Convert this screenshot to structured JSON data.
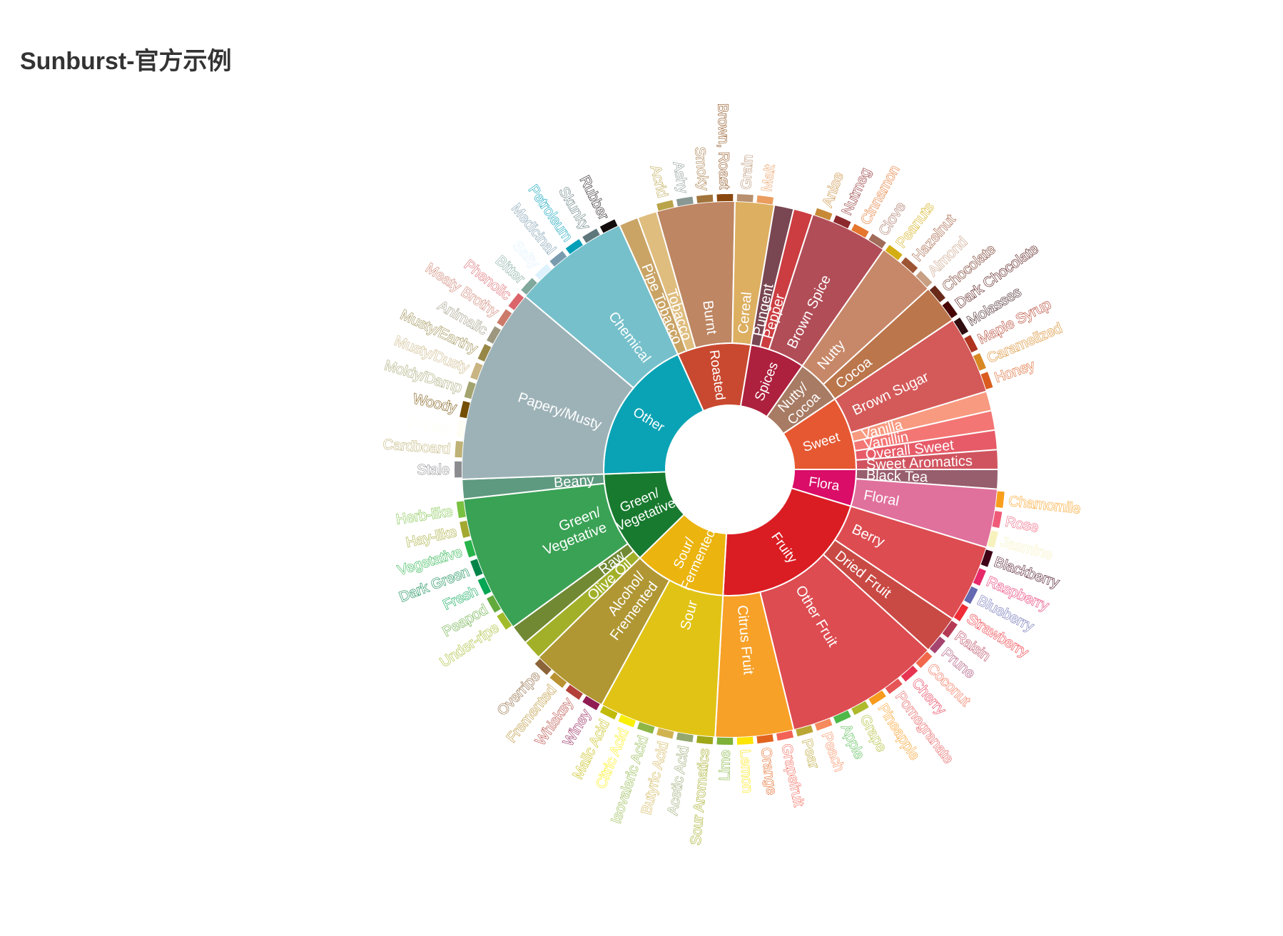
{
  "page": {
    "title": "Sunburst-官方示例"
  },
  "chart_data": {
    "type": "sunburst",
    "title": "Sunburst-官方示例",
    "children": [
      {
        "name": "Flora",
        "color": "#da0d68",
        "children": [
          {
            "name": "Black Tea",
            "value": 1,
            "color": "#975e6d"
          },
          {
            "name": "Floral",
            "color": "#e0719c",
            "children": [
              {
                "name": "Chamomile",
                "value": 1,
                "color": "#f99e1c"
              },
              {
                "name": "Rose",
                "value": 1,
                "color": "#ef5a78"
              },
              {
                "name": "Jasmine",
                "value": 1,
                "color": "#f7f1bd"
              }
            ]
          }
        ]
      },
      {
        "name": "Fruity",
        "color": "#da1d23",
        "children": [
          {
            "name": "Berry",
            "color": "#dd4c51",
            "children": [
              {
                "name": "Blackberry",
                "value": 1,
                "color": "#3e0317"
              },
              {
                "name": "Raspberry",
                "value": 1,
                "color": "#e62969"
              },
              {
                "name": "Blueberry",
                "value": 1,
                "color": "#6569b0"
              },
              {
                "name": "Strawberry",
                "value": 1,
                "color": "#ef2d36"
              }
            ]
          },
          {
            "name": "Dried Fruit",
            "color": "#c94a44",
            "children": [
              {
                "name": "Raisin",
                "value": 1,
                "color": "#b53b54"
              },
              {
                "name": "Prune",
                "value": 1,
                "color": "#a5446f"
              }
            ]
          },
          {
            "name": "Other Fruit",
            "color": "#dd4c51",
            "children": [
              {
                "name": "Coconut",
                "value": 1,
                "color": "#f2684b"
              },
              {
                "name": "Cherry",
                "value": 1,
                "color": "#e73451"
              },
              {
                "name": "Pomegranate",
                "value": 1,
                "color": "#e65656"
              },
              {
                "name": "Pineapple",
                "value": 1,
                "color": "#f89a1c"
              },
              {
                "name": "Grape",
                "value": 1,
                "color": "#aeb92c"
              },
              {
                "name": "Apple",
                "value": 1,
                "color": "#4eb849"
              },
              {
                "name": "Peach",
                "value": 1,
                "color": "#f68a5c"
              },
              {
                "name": "Pear",
                "value": 1,
                "color": "#baa635"
              }
            ]
          },
          {
            "name": "Citrus Fruit",
            "color": "#f7a128",
            "children": [
              {
                "name": "Grapefruit",
                "value": 1,
                "color": "#f26355"
              },
              {
                "name": "Orange",
                "value": 1,
                "color": "#e2631e"
              },
              {
                "name": "Lemon",
                "value": 1,
                "color": "#fde404"
              },
              {
                "name": "Lime",
                "value": 1,
                "color": "#7eb138"
              }
            ]
          }
        ]
      },
      {
        "name": "Sour/\nFermented",
        "color": "#ebb40f",
        "children": [
          {
            "name": "Sour",
            "color": "#e1c315",
            "children": [
              {
                "name": "Sour Aromatics",
                "value": 1,
                "color": "#9ea718"
              },
              {
                "name": "Acetic Acid",
                "value": 1,
                "color": "#94a76f"
              },
              {
                "name": "Butyric Acid",
                "value": 1,
                "color": "#d0b24f"
              },
              {
                "name": "Isovaleric Acid",
                "value": 1,
                "color": "#8eb646"
              },
              {
                "name": "Citric Acid",
                "value": 1,
                "color": "#faef07"
              },
              {
                "name": "Malic Acid",
                "value": 1,
                "color": "#c1ba07"
              }
            ]
          },
          {
            "name": "Alcohol/\nFremented",
            "color": "#b09733",
            "children": [
              {
                "name": "Winey",
                "value": 1,
                "color": "#8f1c53"
              },
              {
                "name": "Whiskey",
                "value": 1,
                "color": "#b34039"
              },
              {
                "name": "Fremented",
                "value": 1,
                "color": "#ba9232"
              },
              {
                "name": "Overripe",
                "value": 1,
                "color": "#8b6439"
              }
            ]
          }
        ]
      },
      {
        "name": "Green/\nVegetative",
        "color": "#187a2f",
        "children": [
          {
            "name": "Olive Oil",
            "value": 1,
            "color": "#a2b029"
          },
          {
            "name": "Raw",
            "value": 1,
            "color": "#718933"
          },
          {
            "name": "Green/\nVegetative",
            "color": "#3aa255",
            "children": [
              {
                "name": "Under-ripe",
                "value": 1,
                "color": "#a2bb2b"
              },
              {
                "name": "Peapod",
                "value": 1,
                "color": "#62aa3c"
              },
              {
                "name": "Fresh",
                "value": 1,
                "color": "#03a653"
              },
              {
                "name": "Dark Green",
                "value": 1,
                "color": "#038549"
              },
              {
                "name": "Vegetative",
                "value": 1,
                "color": "#28b44b"
              },
              {
                "name": "Hay-like",
                "value": 1,
                "color": "#a3a830"
              },
              {
                "name": "Herb-like",
                "value": 1,
                "color": "#7ac141"
              }
            ]
          },
          {
            "name": "Beany",
            "value": 1,
            "color": "#5e9a80"
          }
        ]
      },
      {
        "name": "Other",
        "color": "#0aa3b5",
        "children": [
          {
            "name": "Papery/Musty",
            "color": "#9db2b7",
            "children": [
              {
                "name": "Stale",
                "value": 1,
                "color": "#8b8c90"
              },
              {
                "name": "Cardboard",
                "value": 1,
                "color": "#beb276"
              },
              {
                "name": "Papery",
                "value": 1,
                "color": "#fefef4"
              },
              {
                "name": "Woody",
                "value": 1,
                "color": "#744e03"
              },
              {
                "name": "Moldy/Damp",
                "value": 1,
                "color": "#a3a36f"
              },
              {
                "name": "Musty/Dusty",
                "value": 1,
                "color": "#c9b583"
              },
              {
                "name": "Musty/Earthy",
                "value": 1,
                "color": "#978847"
              },
              {
                "name": "Animalic",
                "value": 1,
                "color": "#9d977f"
              },
              {
                "name": "Meaty Brothy",
                "value": 1,
                "color": "#cc7b6a"
              },
              {
                "name": "Phenolic",
                "value": 1,
                "color": "#db646a"
              }
            ]
          },
          {
            "name": "Chemical",
            "color": "#76c0cb",
            "children": [
              {
                "name": "Bitter",
                "value": 1,
                "color": "#80a89d"
              },
              {
                "name": "Salty",
                "value": 1,
                "color": "#def2fd"
              },
              {
                "name": "Medicinal",
                "value": 1,
                "color": "#7a9bae"
              },
              {
                "name": "Petroleum",
                "value": 1,
                "color": "#039fb8"
              },
              {
                "name": "Skunky",
                "value": 1,
                "color": "#5e777b"
              },
              {
                "name": "Rubber",
                "value": 1,
                "color": "#120c0c"
              }
            ]
          }
        ]
      },
      {
        "name": "Roasted",
        "color": "#c94930",
        "children": [
          {
            "name": "Pipe Tobacco",
            "value": 1,
            "color": "#caa465"
          },
          {
            "name": "Tobacco",
            "value": 1,
            "color": "#dfbd7e"
          },
          {
            "name": "Burnt",
            "color": "#be8663",
            "children": [
              {
                "name": "Acrid",
                "value": 1,
                "color": "#b9a449"
              },
              {
                "name": "Ashy",
                "value": 1,
                "color": "#899893"
              },
              {
                "name": "Smoky",
                "value": 1,
                "color": "#a1743b"
              },
              {
                "name": "Brown, Roast",
                "value": 1,
                "color": "#894810"
              }
            ]
          },
          {
            "name": "Cereal",
            "color": "#ddaf61",
            "children": [
              {
                "name": "Grain",
                "value": 1,
                "color": "#b7906f"
              },
              {
                "name": "Malt",
                "value": 1,
                "color": "#eb9d5f"
              }
            ]
          }
        ]
      },
      {
        "name": "Spices",
        "color": "#ad213e",
        "children": [
          {
            "name": "Pungent",
            "value": 1,
            "color": "#794752"
          },
          {
            "name": "Pepper",
            "value": 1,
            "color": "#cc3d41"
          },
          {
            "name": "Brown Spice",
            "color": "#b14d57",
            "children": [
              {
                "name": "Anise",
                "value": 1,
                "color": "#c78936"
              },
              {
                "name": "Nutmeg",
                "value": 1,
                "color": "#8c292c"
              },
              {
                "name": "Cinnamon",
                "value": 1,
                "color": "#e5762e"
              },
              {
                "name": "Clove",
                "value": 1,
                "color": "#a16c5a"
              }
            ]
          }
        ]
      },
      {
        "name": "Nutty/\nCocoa",
        "color": "#a87b64",
        "children": [
          {
            "name": "Nutty",
            "color": "#c78869",
            "children": [
              {
                "name": "Peanuts",
                "value": 1,
                "color": "#d4ad12"
              },
              {
                "name": "Hazelnut",
                "value": 1,
                "color": "#9d5433"
              },
              {
                "name": "Almond",
                "value": 1,
                "color": "#c89f83"
              }
            ]
          },
          {
            "name": "Cocoa",
            "color": "#bb764c",
            "children": [
              {
                "name": "Chocolate",
                "value": 1,
                "color": "#692a19"
              },
              {
                "name": "Dark Chocolate",
                "value": 1,
                "color": "#470604"
              }
            ]
          }
        ]
      },
      {
        "name": "Sweet",
        "color": "#e65832",
        "children": [
          {
            "name": "Brown Sugar",
            "color": "#d45a59",
            "children": [
              {
                "name": "Molasses",
                "value": 1,
                "color": "#310d0f"
              },
              {
                "name": "Maple Syrup",
                "value": 1,
                "color": "#ae341f"
              },
              {
                "name": "Caramelized",
                "value": 1,
                "color": "#d78823"
              },
              {
                "name": "Honey",
                "value": 1,
                "color": "#da5c1f"
              }
            ]
          },
          {
            "name": "Vanilla",
            "value": 1,
            "color": "#f89a80"
          },
          {
            "name": "Vanillin",
            "value": 1,
            "color": "#f37674"
          },
          {
            "name": "Overall Sweet",
            "value": 1,
            "color": "#e75b68"
          },
          {
            "name": "Sweet Aromatics",
            "value": 1,
            "color": "#d0545f"
          }
        ]
      }
    ]
  }
}
